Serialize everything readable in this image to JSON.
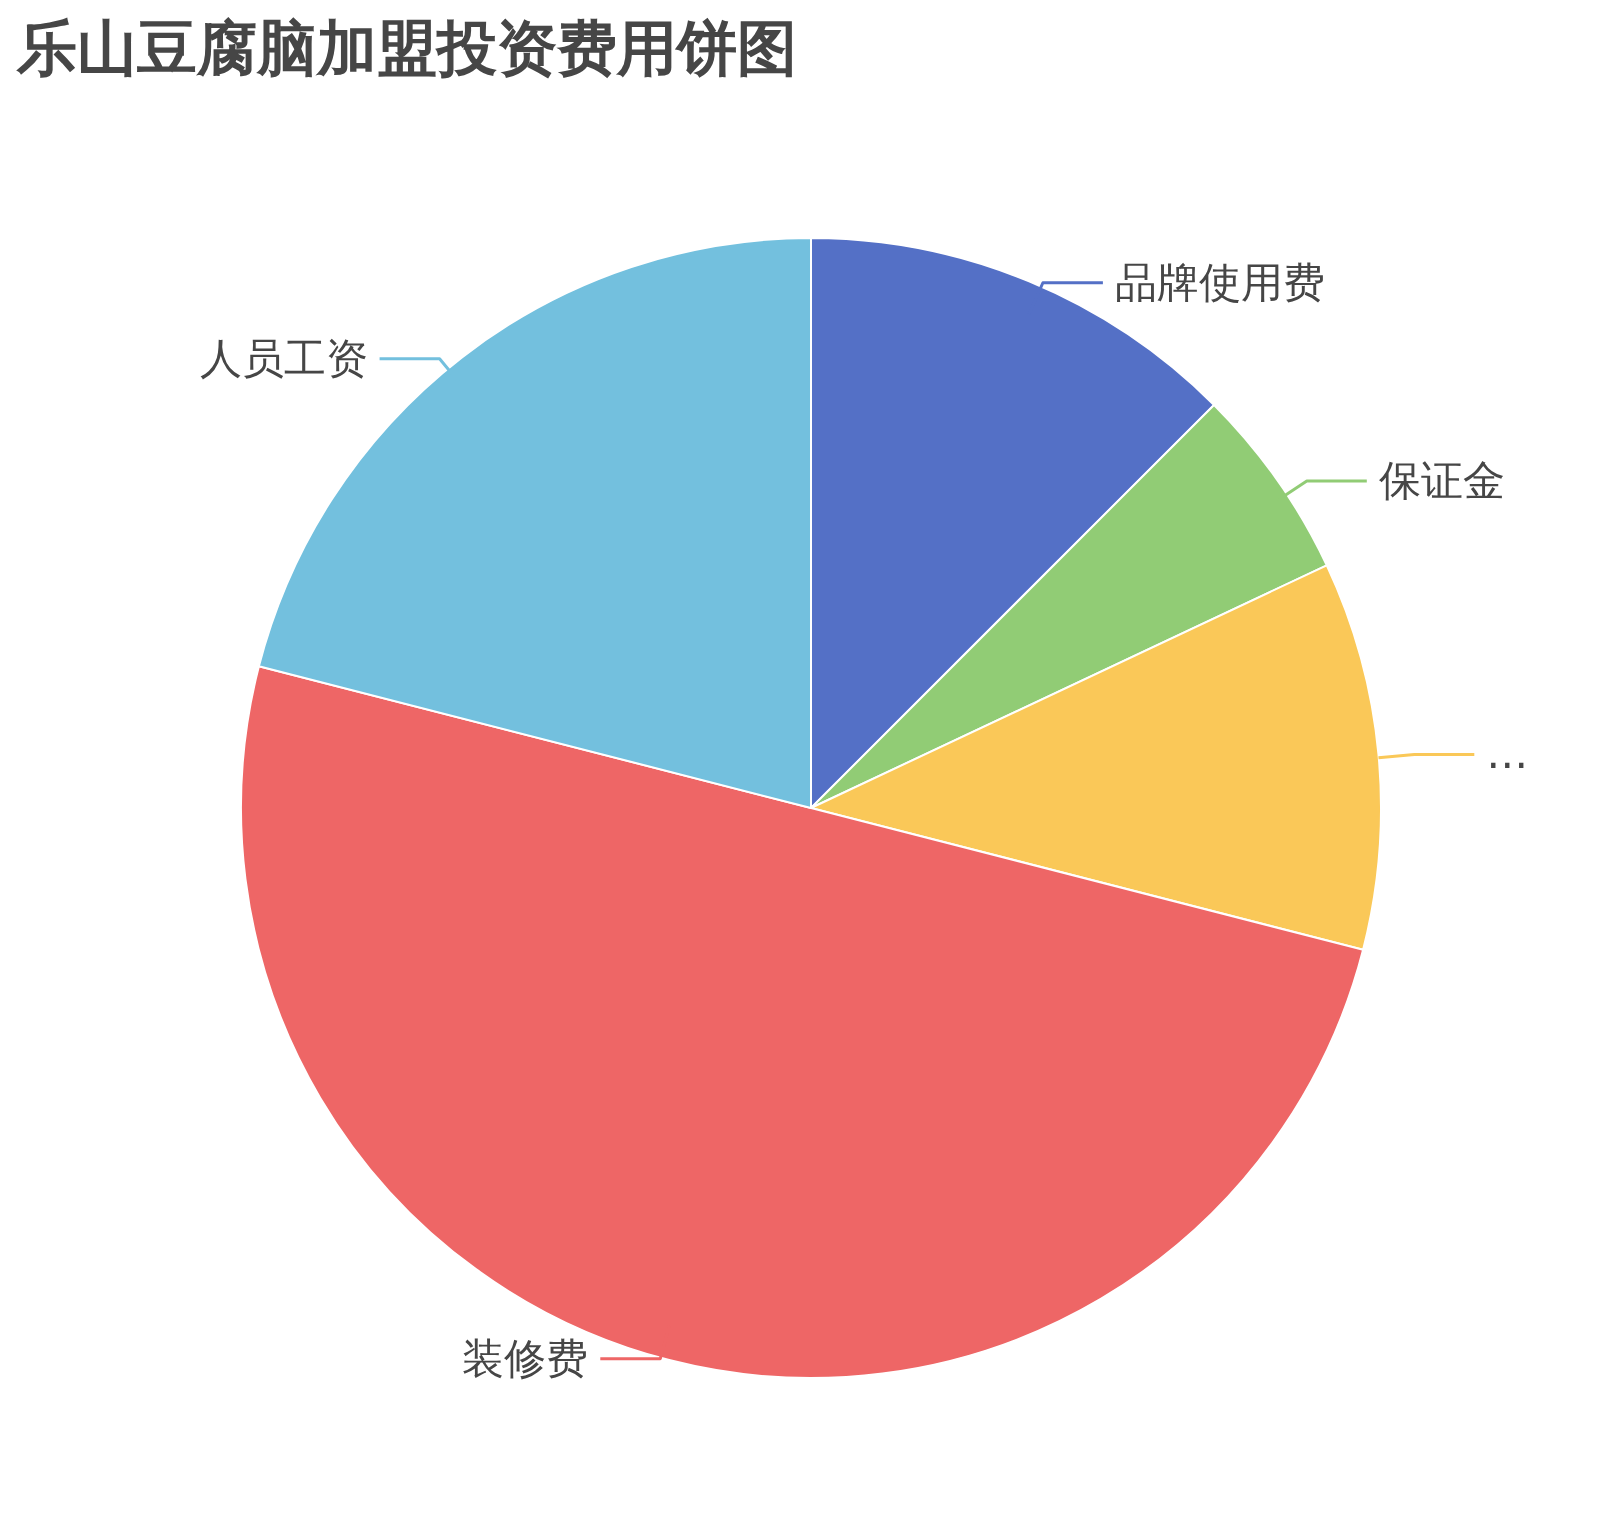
{
  "chart_data": {
    "type": "pie",
    "title": "乐山豆腐脑加盟投资费用饼图",
    "categories": [
      "品牌使用费",
      "保证金",
      "…",
      "装修费",
      "人员工资"
    ],
    "values": [
      12.5,
      5.5,
      11,
      50,
      21
    ],
    "colors": [
      "#5470c6",
      "#91cc75",
      "#fac858",
      "#ee6666",
      "#73c0de"
    ],
    "legend": false
  }
}
